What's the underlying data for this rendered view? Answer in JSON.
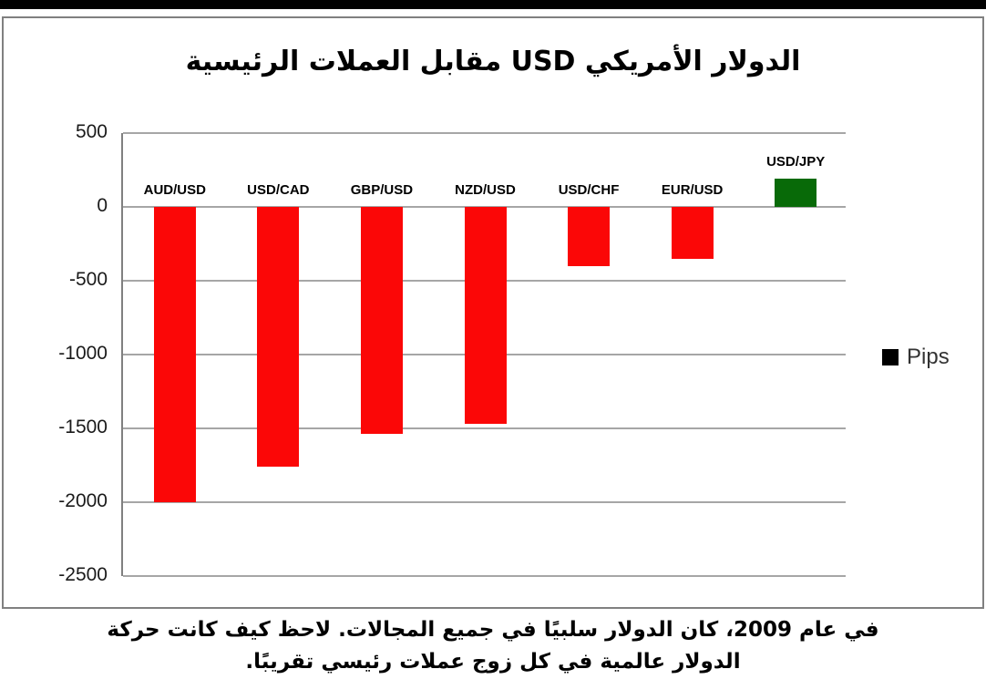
{
  "page": {
    "top_bar_color": "#000000",
    "background_color": "#ffffff",
    "frame_border_color": "#808080"
  },
  "chart_data": {
    "type": "bar",
    "title": "الدولار الأمريكي USD مقابل العملات الرئيسية",
    "categories": [
      "AUD/USD",
      "USD/CAD",
      "GBP/USD",
      "NZD/USD",
      "USD/CHF",
      "EUR/USD",
      "USD/JPY"
    ],
    "values": [
      -2000,
      -1760,
      -1540,
      -1470,
      -400,
      -350,
      190
    ],
    "bar_colors": [
      "#fb0707",
      "#fb0707",
      "#fb0707",
      "#fb0707",
      "#fb0707",
      "#fb0707",
      "#086a08"
    ],
    "series_name": "Pips",
    "xlabel": "",
    "ylabel": "",
    "ylim": [
      -2500,
      500
    ],
    "yticks": [
      500,
      0,
      -500,
      -1000,
      -1500,
      -2000,
      -2500
    ],
    "grid": true,
    "gridline_color": "#a6a6a6",
    "axis_color": "#808080",
    "legend_position": "right"
  },
  "legend": {
    "label": "Pips",
    "swatch_color": "#000000"
  },
  "caption": {
    "line1": "في عام 2009، كان الدولار سلبيًا في جميع المجالات. لاحظ كيف كانت حركة",
    "line2": "الدولار عالمية في كل زوج عملات رئيسي تقريبًا."
  }
}
